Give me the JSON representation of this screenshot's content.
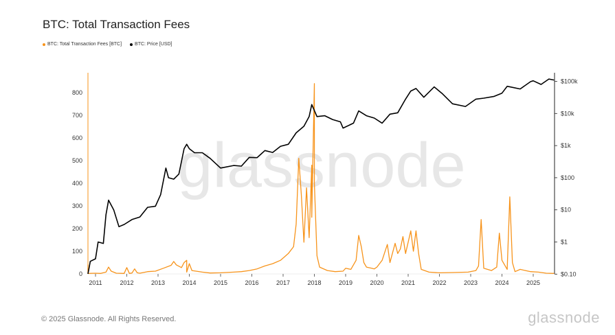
{
  "header": {
    "title": "BTC: Total Transaction Fees"
  },
  "legend": [
    {
      "label": "BTC: Total Transaction Fees [BTC]",
      "color": "#f7931a"
    },
    {
      "label": "BTC: Price [USD]",
      "color": "#000000"
    }
  ],
  "watermark": "glassnode",
  "footer": {
    "copyright": "© 2025 Glassnode. All Rights Reserved.",
    "brand": "glassnode"
  },
  "chart_data": {
    "type": "line",
    "title": "BTC: Total Transaction Fees",
    "xlabel": "",
    "x_ticks": [
      "2011",
      "2012",
      "2013",
      "2014",
      "2015",
      "2016",
      "2017",
      "2018",
      "2019",
      "2020",
      "2021",
      "2022",
      "2023",
      "2024",
      "2025"
    ],
    "y_left": {
      "ylim": [
        0,
        850
      ],
      "ticks": [
        "0",
        "100",
        "200",
        "300",
        "400",
        "500",
        "600",
        "700",
        "800"
      ]
    },
    "y_right": {
      "scale": "log",
      "ylim": [
        0.1,
        100000
      ],
      "ticks": [
        "$0.10",
        "$1",
        "$10",
        "$100",
        "$1k",
        "$10k",
        "$100k"
      ]
    },
    "grid": false,
    "legend_position": "top-left",
    "series": [
      {
        "name": "BTC: Total Transaction Fees [BTC]",
        "axis": "left",
        "color": "#f7931a",
        "points": [
          [
            "2010-07",
            0
          ],
          [
            "2010-07",
            10
          ],
          [
            "2010-08",
            40
          ],
          [
            "2010-09",
            5
          ],
          [
            "2010-10",
            2
          ],
          [
            "2011-01",
            3
          ],
          [
            "2011-03",
            2
          ],
          [
            "2011-05",
            8
          ],
          [
            "2011-06",
            30
          ],
          [
            "2011-07",
            12
          ],
          [
            "2011-09",
            3
          ],
          [
            "2011-12",
            2
          ],
          [
            "2012-01",
            28
          ],
          [
            "2012-02",
            2
          ],
          [
            "2012-03",
            4
          ],
          [
            "2012-04",
            22
          ],
          [
            "2012-05",
            5
          ],
          [
            "2012-06",
            3
          ],
          [
            "2012-09",
            10
          ],
          [
            "2012-12",
            12
          ],
          [
            "2013-03",
            25
          ],
          [
            "2013-06",
            38
          ],
          [
            "2013-07",
            55
          ],
          [
            "2013-08",
            40
          ],
          [
            "2013-10",
            28
          ],
          [
            "2013-11",
            50
          ],
          [
            "2013-12",
            60
          ],
          [
            "2013-12",
            8
          ],
          [
            "2014-01",
            45
          ],
          [
            "2014-02",
            15
          ],
          [
            "2014-06",
            8
          ],
          [
            "2014-09",
            4
          ],
          [
            "2015-01",
            5
          ],
          [
            "2015-06",
            8
          ],
          [
            "2015-09",
            10
          ],
          [
            "2015-12",
            15
          ],
          [
            "2016-03",
            22
          ],
          [
            "2016-06",
            35
          ],
          [
            "2016-09",
            45
          ],
          [
            "2016-12",
            60
          ],
          [
            "2017-03",
            90
          ],
          [
            "2017-05",
            120
          ],
          [
            "2017-06",
            220
          ],
          [
            "2017-07",
            510
          ],
          [
            "2017-08",
            350
          ],
          [
            "2017-09",
            140
          ],
          [
            "2017-10",
            380
          ],
          [
            "2017-11",
            160
          ],
          [
            "2017-12",
            480
          ],
          [
            "2017-12",
            250
          ],
          [
            "2018-01",
            840
          ],
          [
            "2018-01",
            400
          ],
          [
            "2018-02",
            80
          ],
          [
            "2018-03",
            30
          ],
          [
            "2018-06",
            15
          ],
          [
            "2018-09",
            10
          ],
          [
            "2018-12",
            12
          ],
          [
            "2019-01",
            25
          ],
          [
            "2019-03",
            20
          ],
          [
            "2019-05",
            60
          ],
          [
            "2019-06",
            170
          ],
          [
            "2019-07",
            120
          ],
          [
            "2019-08",
            50
          ],
          [
            "2019-09",
            30
          ],
          [
            "2019-11",
            25
          ],
          [
            "2019-12",
            22
          ],
          [
            "2020-01",
            30
          ],
          [
            "2020-03",
            60
          ],
          [
            "2020-05",
            130
          ],
          [
            "2020-06",
            50
          ],
          [
            "2020-08",
            135
          ],
          [
            "2020-09",
            90
          ],
          [
            "2020-10",
            110
          ],
          [
            "2020-11",
            165
          ],
          [
            "2020-12",
            90
          ],
          [
            "2021-01",
            140
          ],
          [
            "2021-02",
            190
          ],
          [
            "2021-03",
            100
          ],
          [
            "2021-04",
            190
          ],
          [
            "2021-05",
            90
          ],
          [
            "2021-06",
            20
          ],
          [
            "2021-09",
            8
          ],
          [
            "2022-01",
            5
          ],
          [
            "2022-06",
            6
          ],
          [
            "2022-12",
            8
          ],
          [
            "2023-03",
            15
          ],
          [
            "2023-04",
            35
          ],
          [
            "2023-05",
            240
          ],
          [
            "2023-06",
            25
          ],
          [
            "2023-09",
            15
          ],
          [
            "2023-11",
            30
          ],
          [
            "2023-12",
            180
          ],
          [
            "2024-01",
            60
          ],
          [
            "2024-03",
            20
          ],
          [
            "2024-04",
            340
          ],
          [
            "2024-05",
            50
          ],
          [
            "2024-06",
            10
          ],
          [
            "2024-08",
            20
          ],
          [
            "2024-10",
            15
          ],
          [
            "2024-12",
            10
          ],
          [
            "2025-03",
            8
          ],
          [
            "2025-06",
            3
          ],
          [
            "2025-09",
            2
          ]
        ]
      },
      {
        "name": "BTC: Price [USD]",
        "axis": "right",
        "color": "#000000",
        "points": [
          [
            "2010-07",
            0.06
          ],
          [
            "2010-09",
            0.06
          ],
          [
            "2010-11",
            0.25
          ],
          [
            "2011-01",
            0.3
          ],
          [
            "2011-02",
            1
          ],
          [
            "2011-04",
            0.9
          ],
          [
            "2011-05",
            7
          ],
          [
            "2011-06",
            20
          ],
          [
            "2011-08",
            10
          ],
          [
            "2011-10",
            3
          ],
          [
            "2011-12",
            3.5
          ],
          [
            "2012-03",
            5
          ],
          [
            "2012-06",
            6
          ],
          [
            "2012-09",
            12
          ],
          [
            "2012-12",
            13
          ],
          [
            "2013-02",
            30
          ],
          [
            "2013-04",
            200
          ],
          [
            "2013-05",
            100
          ],
          [
            "2013-07",
            90
          ],
          [
            "2013-09",
            130
          ],
          [
            "2013-11",
            800
          ],
          [
            "2013-12",
            1100
          ],
          [
            "2014-01",
            800
          ],
          [
            "2014-03",
            600
          ],
          [
            "2014-06",
            600
          ],
          [
            "2014-09",
            400
          ],
          [
            "2015-01",
            200
          ],
          [
            "2015-06",
            240
          ],
          [
            "2015-09",
            230
          ],
          [
            "2015-12",
            430
          ],
          [
            "2016-03",
            420
          ],
          [
            "2016-06",
            700
          ],
          [
            "2016-09",
            610
          ],
          [
            "2016-12",
            950
          ],
          [
            "2017-03",
            1100
          ],
          [
            "2017-06",
            2500
          ],
          [
            "2017-09",
            4000
          ],
          [
            "2017-11",
            8000
          ],
          [
            "2017-12",
            19000
          ],
          [
            "2018-02",
            8000
          ],
          [
            "2018-05",
            8500
          ],
          [
            "2018-08",
            6500
          ],
          [
            "2018-11",
            5500
          ],
          [
            "2018-12",
            3500
          ],
          [
            "2019-04",
            5000
          ],
          [
            "2019-06",
            12000
          ],
          [
            "2019-09",
            8500
          ],
          [
            "2019-12",
            7200
          ],
          [
            "2020-03",
            5000
          ],
          [
            "2020-06",
            9500
          ],
          [
            "2020-09",
            10500
          ],
          [
            "2020-12",
            28000
          ],
          [
            "2021-02",
            50000
          ],
          [
            "2021-04",
            60000
          ],
          [
            "2021-07",
            32000
          ],
          [
            "2021-11",
            67000
          ],
          [
            "2022-02",
            42000
          ],
          [
            "2022-06",
            20000
          ],
          [
            "2022-11",
            16500
          ],
          [
            "2023-03",
            28000
          ],
          [
            "2023-06",
            30000
          ],
          [
            "2023-10",
            34000
          ],
          [
            "2024-01",
            43000
          ],
          [
            "2024-03",
            70000
          ],
          [
            "2024-08",
            58000
          ],
          [
            "2024-12",
            98000
          ],
          [
            "2025-01",
            104000
          ],
          [
            "2025-04",
            80000
          ],
          [
            "2025-07",
            118000
          ],
          [
            "2025-09",
            110000
          ]
        ]
      }
    ]
  }
}
